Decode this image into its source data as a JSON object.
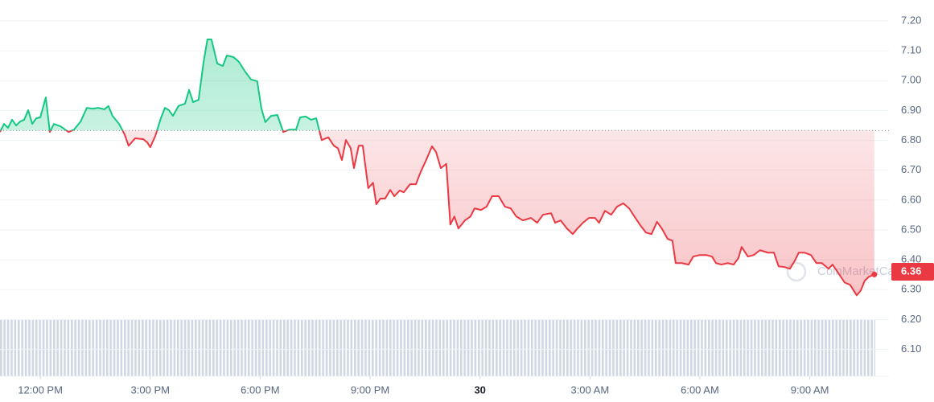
{
  "chart_data": {
    "type": "line",
    "watermark": "CoinMarketCap",
    "x": [
      10.9,
      11.01,
      11.12,
      11.23,
      11.34,
      11.45,
      11.56,
      11.67,
      11.78,
      11.89,
      12.0,
      12.15,
      12.26,
      12.37,
      12.55,
      12.77,
      12.92,
      13.1,
      13.27,
      13.42,
      13.58,
      13.75,
      13.86,
      13.97,
      14.15,
      14.3,
      14.41,
      14.59,
      14.81,
      14.92,
      15.0,
      15.14,
      15.29,
      15.4,
      15.51,
      15.62,
      15.77,
      15.95,
      16.06,
      16.17,
      16.32,
      16.45,
      16.56,
      16.67,
      16.83,
      16.98,
      17.09,
      17.27,
      17.42,
      17.59,
      17.75,
      17.92,
      18.03,
      18.14,
      18.3,
      18.47,
      18.63,
      18.8,
      18.98,
      19.09,
      19.24,
      19.39,
      19.53,
      19.68,
      19.86,
      20.01,
      20.12,
      20.23,
      20.34,
      20.47,
      20.56,
      20.69,
      20.8,
      20.95,
      21.08,
      21.17,
      21.28,
      21.41,
      21.55,
      21.66,
      21.81,
      21.92,
      22.09,
      22.25,
      22.38,
      22.53,
      22.69,
      22.8,
      22.93,
      23.08,
      23.19,
      23.3,
      23.41,
      23.59,
      23.74,
      23.85,
      24.03,
      24.18,
      24.33,
      24.51,
      24.68,
      24.84,
      24.99,
      25.17,
      25.39,
      25.56,
      25.72,
      25.94,
      26.05,
      26.2,
      26.37,
      26.53,
      26.66,
      26.81,
      26.97,
      27.14,
      27.25,
      27.41,
      27.58,
      27.74,
      27.91,
      28.07,
      28.24,
      28.39,
      28.53,
      28.68,
      28.83,
      28.96,
      29.12,
      29.25,
      29.34,
      29.51,
      29.69,
      29.82,
      30.0,
      30.17,
      30.33,
      30.44,
      30.59,
      30.76,
      30.92,
      31.05,
      31.14,
      31.31,
      31.47,
      31.64,
      31.86,
      32.02,
      32.15,
      32.3,
      32.46,
      32.59,
      32.7,
      32.85,
      33.03,
      33.18,
      33.33,
      33.51,
      33.62,
      33.77,
      33.95,
      34.1,
      34.28,
      34.39,
      34.5,
      34.61,
      34.76
    ],
    "values": [
      6.828,
      6.855,
      6.842,
      6.869,
      6.85,
      6.863,
      6.869,
      6.901,
      6.855,
      6.874,
      6.877,
      6.944,
      6.828,
      6.855,
      6.847,
      6.828,
      6.836,
      6.863,
      6.909,
      6.906,
      6.909,
      6.904,
      6.915,
      6.882,
      6.855,
      6.82,
      6.782,
      6.807,
      6.804,
      6.793,
      6.777,
      6.815,
      6.874,
      6.909,
      6.901,
      6.882,
      6.915,
      6.923,
      6.969,
      6.928,
      6.936,
      7.057,
      7.138,
      7.138,
      7.057,
      7.049,
      7.084,
      7.079,
      7.063,
      7.03,
      7.004,
      6.998,
      6.909,
      6.861,
      6.882,
      6.885,
      6.828,
      6.836,
      6.836,
      6.877,
      6.88,
      6.869,
      6.874,
      6.801,
      6.81,
      6.782,
      6.774,
      6.734,
      6.801,
      6.774,
      6.707,
      6.782,
      6.782,
      6.64,
      6.658,
      6.586,
      6.605,
      6.605,
      6.634,
      6.613,
      6.632,
      6.626,
      6.653,
      6.653,
      6.694,
      6.734,
      6.78,
      6.761,
      6.707,
      6.721,
      6.518,
      6.545,
      6.505,
      6.532,
      6.545,
      6.572,
      6.567,
      6.578,
      6.613,
      6.613,
      6.578,
      6.572,
      6.545,
      6.532,
      6.54,
      6.524,
      6.551,
      6.556,
      6.524,
      6.532,
      6.505,
      6.486,
      6.505,
      6.524,
      6.54,
      6.54,
      6.524,
      6.564,
      6.551,
      6.578,
      6.589,
      6.572,
      6.54,
      6.513,
      6.491,
      6.486,
      6.527,
      6.505,
      6.47,
      6.464,
      6.389,
      6.389,
      6.384,
      6.411,
      6.416,
      6.416,
      6.411,
      6.389,
      6.384,
      6.389,
      6.384,
      6.405,
      6.443,
      6.411,
      6.416,
      6.432,
      6.424,
      6.424,
      6.378,
      6.376,
      6.37,
      6.397,
      6.424,
      6.424,
      6.416,
      6.389,
      6.389,
      6.37,
      6.384,
      6.357,
      6.324,
      6.316,
      6.281,
      6.297,
      6.33,
      6.343,
      6.351
    ],
    "baseline": 6.833,
    "current_price": 6.36,
    "up_color": "#16c784",
    "down_color": "#ea3943",
    "xlim": [
      10.9,
      35.16
    ],
    "ylim": [
      6.01,
      7.27
    ],
    "xticks": [
      {
        "value": 12,
        "label": "12:00 PM"
      },
      {
        "value": 15,
        "label": "3:00 PM"
      },
      {
        "value": 18,
        "label": "6:00 PM"
      },
      {
        "value": 21,
        "label": "9:00 PM"
      },
      {
        "value": 24,
        "label": "30"
      },
      {
        "value": 27,
        "label": "3:00 AM"
      },
      {
        "value": 30,
        "label": "6:00 AM"
      },
      {
        "value": 33,
        "label": "9:00 AM"
      }
    ],
    "yticks": [
      {
        "value": 7.2,
        "label": "7.20"
      },
      {
        "value": 7.1,
        "label": "7.10"
      },
      {
        "value": 7.0,
        "label": "7.00"
      },
      {
        "value": 6.9,
        "label": "6.90"
      },
      {
        "value": 6.8,
        "label": "6.80"
      },
      {
        "value": 6.7,
        "label": "6.70"
      },
      {
        "value": 6.6,
        "label": "6.60"
      },
      {
        "value": 6.5,
        "label": "6.50"
      },
      {
        "value": 6.4,
        "label": "6.40"
      },
      {
        "value": 6.3,
        "label": "6.30"
      },
      {
        "value": 6.2,
        "label": "6.20"
      },
      {
        "value": 6.1,
        "label": "6.10"
      }
    ],
    "grid": true
  }
}
